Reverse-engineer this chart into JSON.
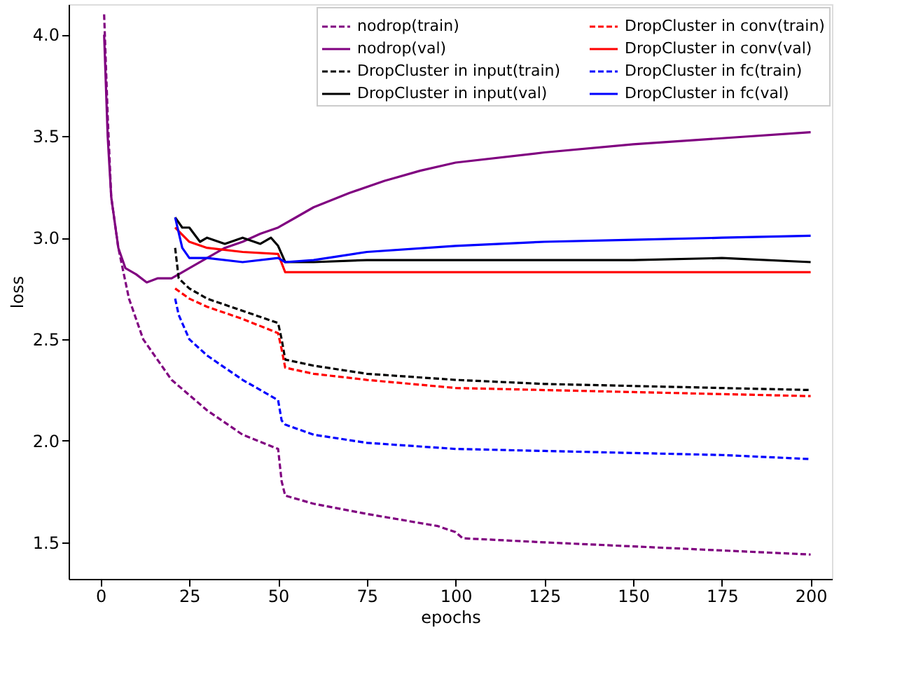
{
  "chart_data": {
    "type": "line",
    "xlabel": "epochs",
    "ylabel": "loss",
    "xlim": [
      -9,
      206
    ],
    "ylim": [
      1.32,
      4.15
    ],
    "xticks": [
      0,
      25,
      50,
      75,
      100,
      125,
      150,
      175,
      200
    ],
    "yticks": [
      1.5,
      {
        "value": 2,
        "label": "2.0"
      },
      2.5,
      {
        "value": 3,
        "label": "3.0"
      },
      3.5,
      {
        "value": 4,
        "label": "4.0"
      }
    ],
    "grid": false,
    "legend": "top",
    "marker": "none",
    "series": [
      {
        "name": "nodrop(train)",
        "color": "#800080",
        "line_style": "dashed",
        "x": [
          1,
          2,
          3,
          5,
          8,
          12,
          20,
          30,
          40,
          50,
          51,
          52,
          60,
          75,
          95,
          100,
          102,
          125,
          150,
          175,
          200
        ],
        "values": [
          4.1,
          3.6,
          3.2,
          2.95,
          2.7,
          2.5,
          2.3,
          2.15,
          2.03,
          1.96,
          1.8,
          1.73,
          1.69,
          1.64,
          1.58,
          1.55,
          1.52,
          1.5,
          1.48,
          1.46,
          1.44
        ]
      },
      {
        "name": "nodrop(val)",
        "color": "#800080",
        "line_style": "solid",
        "x": [
          1,
          2,
          3,
          5,
          7,
          10,
          13,
          16,
          20,
          25,
          30,
          35,
          40,
          45,
          50,
          55,
          60,
          70,
          80,
          90,
          100,
          125,
          150,
          175,
          200
        ],
        "values": [
          4.0,
          3.5,
          3.2,
          2.95,
          2.85,
          2.82,
          2.78,
          2.8,
          2.8,
          2.85,
          2.9,
          2.95,
          2.98,
          3.02,
          3.05,
          3.1,
          3.15,
          3.22,
          3.28,
          3.33,
          3.37,
          3.42,
          3.46,
          3.49,
          3.52
        ]
      },
      {
        "name": "DropCluster in input(train)",
        "color": "#000000",
        "line_style": "dashed",
        "x": [
          21,
          22,
          25,
          30,
          40,
          50,
          51,
          52,
          60,
          75,
          100,
          125,
          150,
          175,
          200
        ],
        "values": [
          2.95,
          2.8,
          2.75,
          2.7,
          2.64,
          2.58,
          2.5,
          2.4,
          2.37,
          2.33,
          2.3,
          2.28,
          2.27,
          2.26,
          2.25
        ]
      },
      {
        "name": "DropCluster in input(val)",
        "color": "#000000",
        "line_style": "solid",
        "x": [
          21,
          23,
          25,
          28,
          30,
          35,
          40,
          45,
          48,
          50,
          52,
          60,
          75,
          100,
          125,
          150,
          175,
          200
        ],
        "values": [
          3.1,
          3.05,
          3.05,
          2.98,
          3.0,
          2.97,
          3.0,
          2.97,
          3.0,
          2.96,
          2.88,
          2.88,
          2.89,
          2.89,
          2.89,
          2.89,
          2.9,
          2.88
        ]
      },
      {
        "name": "DropCluster in conv(train)",
        "color": "#ff0000",
        "line_style": "dashed",
        "x": [
          21,
          25,
          30,
          40,
          50,
          51,
          52,
          60,
          75,
          100,
          125,
          150,
          175,
          200
        ],
        "values": [
          2.75,
          2.7,
          2.66,
          2.6,
          2.53,
          2.45,
          2.36,
          2.33,
          2.3,
          2.26,
          2.25,
          2.24,
          2.23,
          2.22
        ]
      },
      {
        "name": "DropCluster in conv(val)",
        "color": "#ff0000",
        "line_style": "solid",
        "x": [
          21,
          25,
          30,
          40,
          50,
          52,
          60,
          75,
          100,
          125,
          150,
          175,
          200
        ],
        "values": [
          3.05,
          2.98,
          2.95,
          2.93,
          2.92,
          2.83,
          2.83,
          2.83,
          2.83,
          2.83,
          2.83,
          2.83,
          2.83
        ]
      },
      {
        "name": "DropCluster in fc(train)",
        "color": "#0000ff",
        "line_style": "dashed",
        "x": [
          21,
          22,
          25,
          30,
          40,
          50,
          51,
          52,
          60,
          75,
          100,
          125,
          150,
          175,
          200
        ],
        "values": [
          2.7,
          2.62,
          2.5,
          2.42,
          2.3,
          2.2,
          2.1,
          2.08,
          2.03,
          1.99,
          1.96,
          1.95,
          1.94,
          1.93,
          1.91
        ]
      },
      {
        "name": "DropCluster in fc(val)",
        "color": "#0000ff",
        "line_style": "solid",
        "x": [
          21,
          23,
          25,
          30,
          40,
          50,
          52,
          60,
          75,
          100,
          125,
          150,
          175,
          200
        ],
        "values": [
          3.1,
          2.95,
          2.9,
          2.9,
          2.88,
          2.9,
          2.88,
          2.89,
          2.93,
          2.96,
          2.98,
          2.99,
          3.0,
          3.01
        ]
      }
    ]
  }
}
